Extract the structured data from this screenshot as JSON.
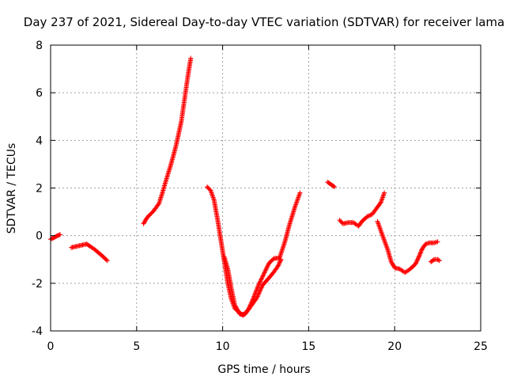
{
  "chart_data": {
    "type": "scatter",
    "title": "Day 237 of 2021, Sidereal Day-to-day VTEC variation (SDTVAR) for receiver lama",
    "xlabel": "GPS time / hours",
    "ylabel": "SDTVAR / TECUs",
    "xlim": [
      0,
      25
    ],
    "ylim": [
      -4,
      8
    ],
    "xticks": [
      0,
      5,
      10,
      15,
      20,
      25
    ],
    "xtick_labels": [
      "0",
      "5",
      "10",
      "15",
      "20",
      "25"
    ],
    "yticks": [
      -4,
      -2,
      0,
      2,
      4,
      6,
      8
    ],
    "ytick_labels": [
      "-4",
      "-2",
      "0",
      "2",
      "4",
      "6",
      "8"
    ],
    "grid": true,
    "marker": "+",
    "series": [
      {
        "name": "SDTVAR",
        "color": "#ff0000",
        "segments": [
          [
            [
              0.0,
              -0.15
            ],
            [
              0.2,
              -0.08
            ],
            [
              0.4,
              0.0
            ],
            [
              0.55,
              0.05
            ]
          ],
          [
            [
              1.2,
              -0.5
            ],
            [
              1.5,
              -0.45
            ],
            [
              1.8,
              -0.4
            ],
            [
              2.1,
              -0.35
            ],
            [
              2.3,
              -0.45
            ],
            [
              2.6,
              -0.6
            ],
            [
              3.0,
              -0.85
            ],
            [
              3.3,
              -1.05
            ]
          ],
          [
            [
              5.4,
              0.5
            ],
            [
              5.6,
              0.75
            ],
            [
              6.0,
              1.05
            ],
            [
              6.3,
              1.35
            ],
            [
              6.5,
              1.8
            ],
            [
              6.7,
              2.3
            ],
            [
              7.0,
              3.0
            ],
            [
              7.3,
              3.8
            ],
            [
              7.6,
              4.8
            ],
            [
              7.8,
              5.8
            ],
            [
              8.0,
              6.8
            ],
            [
              8.15,
              7.45
            ]
          ],
          [
            [
              9.1,
              2.05
            ],
            [
              9.3,
              1.9
            ],
            [
              9.5,
              1.5
            ],
            [
              9.7,
              0.7
            ],
            [
              9.9,
              -0.2
            ],
            [
              10.1,
              -1.1
            ],
            [
              10.3,
              -2.0
            ],
            [
              10.5,
              -2.65
            ],
            [
              10.7,
              -3.05
            ],
            [
              11.0,
              -3.25
            ],
            [
              11.2,
              -3.35
            ],
            [
              11.5,
              -3.1
            ],
            [
              11.8,
              -2.6
            ],
            [
              12.1,
              -2.05
            ],
            [
              12.4,
              -1.6
            ],
            [
              12.7,
              -1.15
            ],
            [
              13.0,
              -0.95
            ],
            [
              13.3,
              -0.95
            ],
            [
              13.6,
              -0.3
            ],
            [
              13.9,
              0.5
            ],
            [
              14.2,
              1.2
            ],
            [
              14.5,
              1.8
            ]
          ],
          [
            [
              10.1,
              -0.9
            ],
            [
              10.3,
              -1.4
            ],
            [
              10.5,
              -2.2
            ],
            [
              10.7,
              -2.9
            ],
            [
              11.0,
              -3.3
            ],
            [
              11.3,
              -3.3
            ],
            [
              11.6,
              -3.0
            ],
            [
              12.0,
              -2.6
            ],
            [
              12.3,
              -2.1
            ],
            [
              12.6,
              -1.85
            ],
            [
              12.9,
              -1.6
            ],
            [
              13.2,
              -1.3
            ],
            [
              13.4,
              -1.0
            ]
          ],
          [
            [
              16.1,
              2.25
            ],
            [
              16.3,
              2.15
            ],
            [
              16.5,
              2.05
            ]
          ],
          [
            [
              16.8,
              0.65
            ],
            [
              17.0,
              0.5
            ],
            [
              17.3,
              0.55
            ],
            [
              17.6,
              0.55
            ],
            [
              17.9,
              0.4
            ],
            [
              18.1,
              0.6
            ],
            [
              18.4,
              0.8
            ],
            [
              18.7,
              0.9
            ],
            [
              19.0,
              1.2
            ],
            [
              19.2,
              1.4
            ],
            [
              19.4,
              1.8
            ]
          ],
          [
            [
              19.0,
              0.6
            ],
            [
              19.3,
              0.0
            ],
            [
              19.6,
              -0.6
            ],
            [
              19.8,
              -1.1
            ],
            [
              20.0,
              -1.35
            ],
            [
              20.3,
              -1.4
            ],
            [
              20.6,
              -1.55
            ],
            [
              20.9,
              -1.4
            ],
            [
              21.2,
              -1.2
            ],
            [
              21.4,
              -0.9
            ],
            [
              21.6,
              -0.55
            ],
            [
              21.8,
              -0.35
            ],
            [
              22.0,
              -0.3
            ],
            [
              22.3,
              -0.3
            ],
            [
              22.5,
              -0.25
            ]
          ],
          [
            [
              22.1,
              -1.1
            ],
            [
              22.3,
              -1.0
            ],
            [
              22.5,
              -1.0
            ],
            [
              22.6,
              -1.05
            ]
          ]
        ]
      }
    ]
  }
}
